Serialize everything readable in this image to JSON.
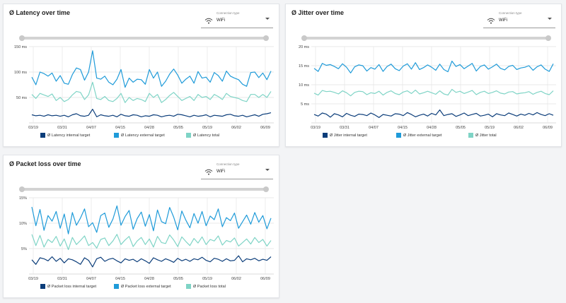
{
  "connection": {
    "label": "Connection type",
    "value": "WiFi"
  },
  "colors": {
    "internal": "#0b3d7a",
    "external": "#1f9bd9",
    "total": "#7fd4c6",
    "grid": "#e2e2e2"
  },
  "chart_data": [
    {
      "type": "line",
      "title": "Ø Latency over time",
      "y_ticks": [
        "50 ms",
        "100 ms",
        "150 ms"
      ],
      "y_tick_values": [
        50,
        100,
        150
      ],
      "ylim": [
        0,
        150
      ],
      "x_ticks": [
        "03/19",
        "03/31",
        "04/07",
        "04/15",
        "04/28",
        "05/05",
        "05/19",
        "06/02",
        "06/09"
      ],
      "series": [
        {
          "name": "Ø Latency internal target",
          "key": "internal",
          "values": [
            16,
            14,
            15,
            13,
            16,
            14,
            15,
            13,
            15,
            12,
            16,
            18,
            14,
            13,
            15,
            27,
            12,
            16,
            14,
            13,
            15,
            12,
            17,
            14,
            13,
            16,
            15,
            12,
            14,
            13,
            16,
            15,
            12,
            14,
            15,
            13,
            17,
            16,
            14,
            12,
            15,
            13,
            14,
            16,
            12,
            15,
            14,
            13,
            16,
            17,
            14,
            13,
            15,
            12,
            14,
            16,
            13,
            17,
            18,
            20
          ]
        },
        {
          "name": "Ø Latency external target",
          "key": "external",
          "values": [
            90,
            75,
            100,
            97,
            92,
            98,
            82,
            93,
            78,
            76,
            95,
            108,
            105,
            84,
            100,
            142,
            88,
            86,
            92,
            80,
            75,
            86,
            105,
            70,
            88,
            80,
            86,
            85,
            76,
            105,
            88,
            100,
            72,
            82,
            96,
            106,
            94,
            78,
            86,
            92,
            78,
            101,
            88,
            90,
            80,
            99,
            93,
            82,
            102,
            92,
            88,
            85,
            76,
            72,
            99,
            100,
            89,
            98,
            85,
            102
          ]
        },
        {
          "name": "Ø Latency total",
          "key": "total",
          "values": [
            56,
            48,
            58,
            55,
            52,
            57,
            44,
            50,
            42,
            46,
            55,
            62,
            60,
            46,
            55,
            80,
            48,
            46,
            52,
            44,
            42,
            48,
            58,
            40,
            50,
            44,
            48,
            46,
            42,
            58,
            50,
            56,
            40,
            46,
            54,
            60,
            52,
            44,
            48,
            52,
            44,
            56,
            50,
            52,
            46,
            56,
            52,
            46,
            58,
            52,
            50,
            48,
            44,
            42,
            56,
            56,
            50,
            56,
            50,
            62
          ]
        }
      ]
    },
    {
      "type": "line",
      "title": "Ø Jitter over time",
      "y_ticks": [
        "5 ms",
        "10 ms",
        "15 ms",
        "20 ms"
      ],
      "y_tick_values": [
        5,
        10,
        15,
        20
      ],
      "ylim": [
        0,
        20
      ],
      "x_ticks": [
        "03/19",
        "03/31",
        "04/07",
        "04/15",
        "04/28",
        "05/05",
        "05/19",
        "06/02",
        "06/09"
      ],
      "series": [
        {
          "name": "Ø Jitter internal target",
          "key": "internal",
          "values": [
            2.2,
            1.8,
            2.6,
            2.3,
            1.5,
            2.4,
            2.1,
            1.6,
            2.5,
            2.0,
            1.7,
            2.3,
            2.2,
            1.9,
            2.6,
            2.1,
            1.4,
            2.2,
            2.0,
            1.8,
            2.4,
            2.3,
            1.9,
            2.7,
            2.2,
            1.6,
            2.0,
            2.3,
            1.8,
            2.5,
            2.1,
            3.4,
            1.9,
            2.2,
            2.4,
            1.7,
            2.1,
            2.6,
            1.9,
            2.2,
            2.5,
            1.8,
            2.0,
            2.3,
            1.6,
            2.4,
            2.1,
            1.9,
            2.6,
            2.2,
            1.8,
            2.3,
            2.0,
            2.5,
            2.1,
            2.7,
            2.2,
            1.9,
            2.4,
            2.0
          ]
        },
        {
          "name": "Ø Jitter external target",
          "key": "external",
          "values": [
            14.3,
            13.5,
            15.6,
            15.1,
            15.3,
            14.8,
            14.2,
            15.5,
            14.6,
            13.1,
            14.7,
            15.2,
            15.0,
            13.6,
            14.5,
            14.1,
            15.3,
            13.5,
            14.8,
            15.4,
            14.2,
            13.7,
            14.9,
            15.5,
            14.1,
            15.8,
            14.0,
            14.5,
            15.2,
            14.6,
            13.8,
            15.4,
            14.0,
            13.4,
            16.2,
            14.8,
            15.3,
            14.2,
            14.9,
            15.6,
            13.6,
            14.8,
            15.2,
            14.1,
            14.7,
            15.4,
            14.3,
            13.9,
            14.8,
            15.1,
            14.0,
            14.4,
            14.6,
            15.0,
            13.8,
            14.7,
            15.2,
            14.1,
            13.5,
            15.5
          ]
        },
        {
          "name": "Ø Jitter total",
          "key": "total",
          "values": [
            7.8,
            7.3,
            8.5,
            8.2,
            8.3,
            8.0,
            7.6,
            8.4,
            7.9,
            7.1,
            8.0,
            8.3,
            8.2,
            7.4,
            7.9,
            7.7,
            8.3,
            7.3,
            8.0,
            8.4,
            7.7,
            7.4,
            8.1,
            8.4,
            7.7,
            8.6,
            7.6,
            7.9,
            8.3,
            7.9,
            7.5,
            8.4,
            7.6,
            7.3,
            8.8,
            8.0,
            8.3,
            7.7,
            8.1,
            8.5,
            7.4,
            8.0,
            8.3,
            7.7,
            8.0,
            8.4,
            7.8,
            7.6,
            8.1,
            8.2,
            7.6,
            7.8,
            7.9,
            8.2,
            7.5,
            8.0,
            8.3,
            7.7,
            7.4,
            8.4
          ]
        }
      ]
    },
    {
      "type": "line",
      "title": "Ø Packet loss over time",
      "y_ticks": [
        "5%",
        "10%",
        "15%"
      ],
      "y_tick_values": [
        5,
        10,
        15
      ],
      "ylim": [
        0,
        15
      ],
      "x_ticks": [
        "03/19",
        "03/31",
        "04/07",
        "04/15",
        "04/28",
        "05/05",
        "05/19",
        "06/02",
        "06/09"
      ],
      "series": [
        {
          "name": "Ø Packet loss internal target",
          "key": "internal",
          "values": [
            2.8,
            1.9,
            3.2,
            3.0,
            2.6,
            3.4,
            2.5,
            3.1,
            2.2,
            3.0,
            2.8,
            2.4,
            1.9,
            3.2,
            2.7,
            1.4,
            3.0,
            3.3,
            2.5,
            2.9,
            3.1,
            2.6,
            2.2,
            3.0,
            2.7,
            2.9,
            2.4,
            3.0,
            2.6,
            2.1,
            3.2,
            2.8,
            2.5,
            3.0,
            2.7,
            2.3,
            3.1,
            2.6,
            2.9,
            2.5,
            3.0,
            2.8,
            3.3,
            2.7,
            2.4,
            3.1,
            2.9,
            2.5,
            3.0,
            2.6,
            2.7,
            3.6,
            2.4,
            3.0,
            2.8,
            3.1,
            2.6,
            2.9,
            2.7,
            3.4
          ]
        },
        {
          "name": "Ø Packet loss external target",
          "key": "external",
          "values": [
            13.2,
            9.5,
            12.7,
            8.6,
            11.5,
            10.4,
            12.3,
            9.0,
            11.8,
            7.9,
            12.1,
            9.6,
            11.0,
            12.8,
            9.3,
            10.1,
            8.2,
            11.5,
            12.0,
            9.2,
            10.8,
            13.4,
            9.6,
            11.3,
            12.5,
            8.8,
            10.9,
            12.2,
            9.4,
            11.7,
            8.5,
            12.6,
            10.3,
            9.9,
            13.1,
            11.2,
            8.7,
            12.4,
            10.6,
            9.1,
            11.9,
            10.0,
            12.3,
            9.5,
            11.4,
            10.7,
            12.8,
            9.3,
            11.1,
            10.5,
            12.0,
            9.0,
            10.3,
            11.6,
            9.8,
            12.1,
            10.2,
            11.5,
            8.9,
            11.0
          ]
        },
        {
          "name": "Ø Packet loss total",
          "key": "total",
          "values": [
            7.8,
            5.6,
            7.6,
            5.3,
            6.8,
            6.2,
            7.4,
            5.5,
            6.9,
            4.8,
            7.2,
            5.8,
            6.6,
            7.5,
            5.6,
            6.2,
            5.1,
            6.8,
            7.1,
            5.6,
            6.5,
            7.8,
            5.8,
            6.7,
            7.4,
            5.4,
            6.5,
            7.2,
            5.8,
            6.9,
            5.3,
            7.4,
            6.2,
            6.0,
            7.7,
            6.7,
            5.4,
            7.3,
            6.4,
            5.6,
            7.0,
            6.1,
            7.3,
            5.8,
            6.8,
            6.5,
            7.5,
            5.7,
            6.6,
            6.3,
            7.1,
            5.5,
            6.2,
            6.9,
            5.9,
            7.2,
            6.2,
            6.8,
            5.5,
            6.6
          ]
        }
      ]
    }
  ]
}
